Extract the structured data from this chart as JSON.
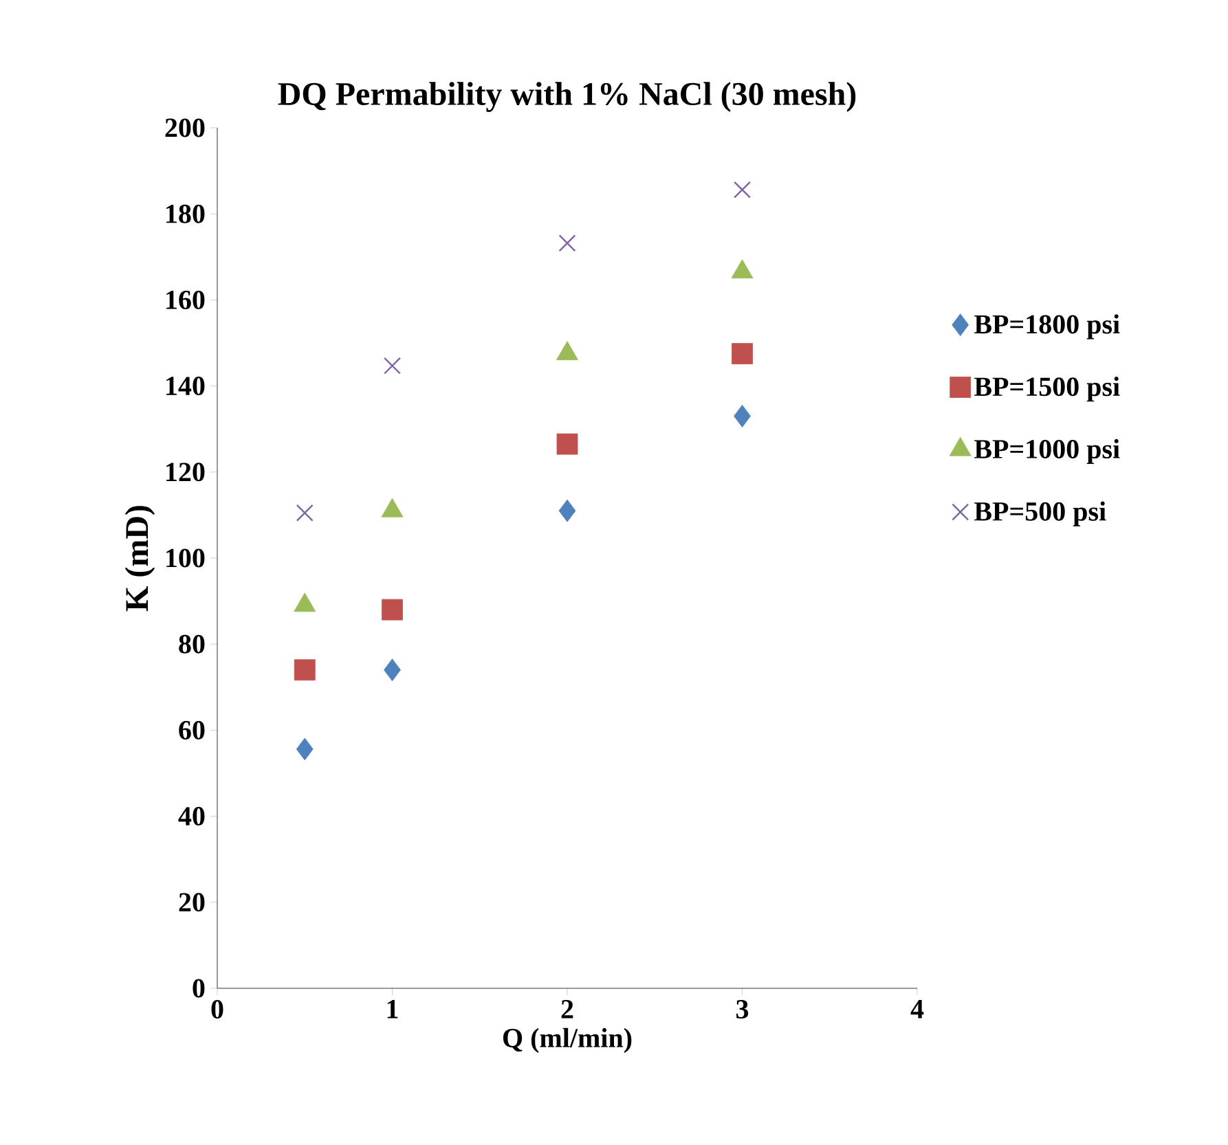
{
  "chart_data": {
    "type": "scatter",
    "title": "DQ Permability with 1% NaCl (30 mesh)",
    "xlabel": "Q (ml/min)",
    "ylabel": "K (mD)",
    "xlim": [
      0,
      4
    ],
    "xticks": [
      0,
      1,
      2,
      3,
      4
    ],
    "ylim": [
      0,
      200
    ],
    "yticks": [
      0,
      20,
      40,
      60,
      80,
      100,
      120,
      140,
      160,
      180,
      200
    ],
    "grid": false,
    "legend": "right",
    "series": [
      {
        "name": "BP=1800 psi",
        "color": "#4f81bd",
        "marker": "diamond",
        "x": [
          0.5,
          1,
          2,
          3
        ],
        "values": [
          55.6,
          74,
          111,
          133
        ]
      },
      {
        "name": "BP=1500 psi",
        "color": "#c0504d",
        "marker": "square",
        "x": [
          0.5,
          1,
          2,
          3
        ],
        "values": [
          74,
          88,
          126.5,
          147.5
        ]
      },
      {
        "name": "BP=1000 psi",
        "color": "#9bbb59",
        "marker": "triangle",
        "x": [
          0.5,
          1,
          2,
          3
        ],
        "values": [
          89,
          111,
          147.5,
          166.5
        ]
      },
      {
        "name": "BP=500 psi",
        "color": "#8064a2",
        "marker": "cross",
        "x": [
          0.5,
          1,
          2,
          3
        ],
        "values": [
          110.5,
          144.7,
          173.2,
          185.6
        ]
      }
    ]
  }
}
